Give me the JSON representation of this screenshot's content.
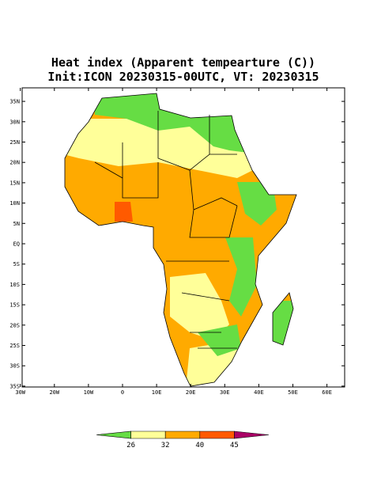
{
  "title": "Heat index (Apparent tempearture (C))",
  "subtitle": "Init:ICON 20230315-00UTC, VT: 20230315",
  "lat_ticks": [
    {
      "value": 35,
      "label": "35N"
    },
    {
      "value": 30,
      "label": "30N"
    },
    {
      "value": 25,
      "label": "25N"
    },
    {
      "value": 20,
      "label": "20N"
    },
    {
      "value": 15,
      "label": "15N"
    },
    {
      "value": 10,
      "label": "10N"
    },
    {
      "value": 5,
      "label": "5N"
    },
    {
      "value": 0,
      "label": "EQ"
    },
    {
      "value": -5,
      "label": "5S"
    },
    {
      "value": -10,
      "label": "10S"
    },
    {
      "value": -15,
      "label": "15S"
    },
    {
      "value": -20,
      "label": "20S"
    },
    {
      "value": -25,
      "label": "25S"
    },
    {
      "value": -30,
      "label": "30S"
    },
    {
      "value": -35,
      "label": "35S"
    }
  ],
  "lon_ticks": [
    {
      "value": -30,
      "label": "30W"
    },
    {
      "value": -20,
      "label": "20W"
    },
    {
      "value": -10,
      "label": "10W"
    },
    {
      "value": 0,
      "label": "0"
    },
    {
      "value": 10,
      "label": "10E"
    },
    {
      "value": 20,
      "label": "20E"
    },
    {
      "value": 30,
      "label": "30E"
    },
    {
      "value": 40,
      "label": "40E"
    },
    {
      "value": 50,
      "label": "50E"
    },
    {
      "value": 60,
      "label": "60E"
    }
  ],
  "colorbar": {
    "levels": [
      26,
      32,
      40,
      45
    ],
    "colors": [
      "#66dd44",
      "#ffff99",
      "#ffaa00",
      "#ff5a00",
      "#aa0066"
    ]
  }
}
